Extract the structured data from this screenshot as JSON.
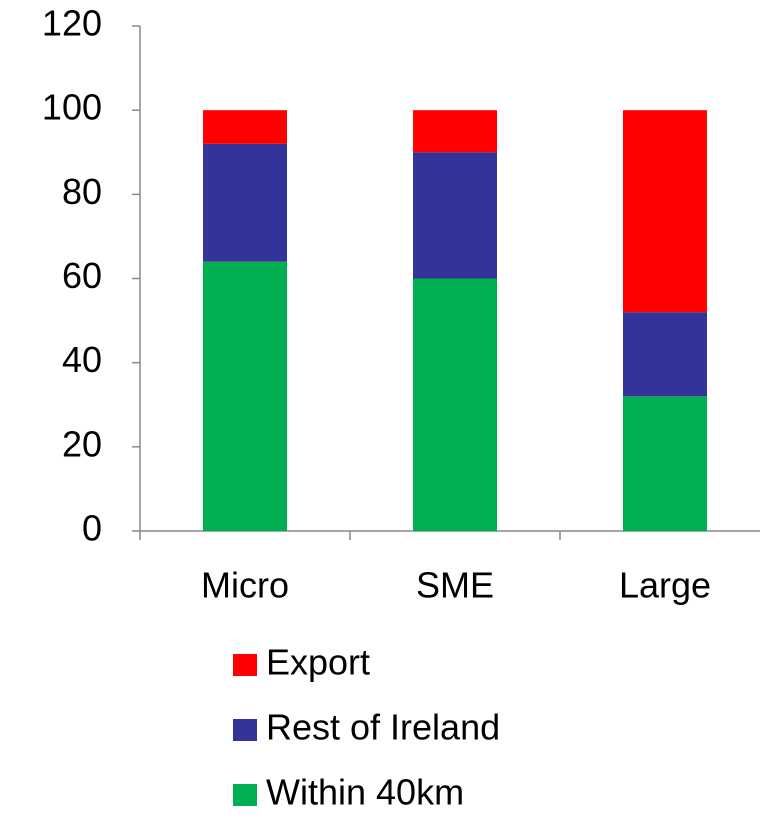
{
  "chart_data": {
    "type": "stacked_bar",
    "categories": [
      "Micro",
      "SME",
      "Large"
    ],
    "series": [
      {
        "name": "Within 40km",
        "color": "#00b050",
        "values": [
          64,
          60,
          32
        ]
      },
      {
        "name": "Rest of Ireland",
        "color": "#333399",
        "values": [
          28,
          30,
          20
        ]
      },
      {
        "name": "Export",
        "color": "#ff0000",
        "values": [
          8,
          10,
          48
        ]
      }
    ],
    "ylim": [
      0,
      120
    ],
    "yticks": [
      0,
      20,
      40,
      60,
      80,
      100,
      120
    ],
    "grid": false,
    "legend": "bottom"
  }
}
